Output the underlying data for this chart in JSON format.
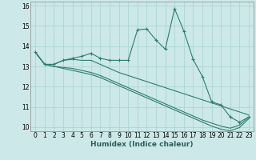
{
  "xlabel": "Humidex (Indice chaleur)",
  "ylabel": "",
  "background_color": "#cce8e8",
  "grid_color": "#aed4d4",
  "line_color": "#2e7d6e",
  "xlim": [
    -0.5,
    23.5
  ],
  "ylim": [
    9.8,
    16.2
  ],
  "xticks": [
    0,
    1,
    2,
    3,
    4,
    5,
    6,
    7,
    8,
    9,
    10,
    11,
    12,
    13,
    14,
    15,
    16,
    17,
    18,
    19,
    20,
    21,
    22,
    23
  ],
  "yticks": [
    10,
    11,
    12,
    13,
    14,
    15,
    16
  ],
  "series": [
    [
      13.7,
      13.1,
      13.1,
      13.3,
      13.4,
      13.5,
      13.65,
      13.4,
      13.3,
      13.3,
      13.3,
      14.8,
      14.85,
      14.3,
      13.85,
      15.85,
      14.75,
      13.35,
      12.5,
      11.25,
      11.1,
      10.5,
      10.25,
      10.5
    ],
    [
      13.7,
      13.1,
      13.1,
      13.3,
      13.35,
      13.3,
      13.3,
      13.1,
      12.9,
      12.7,
      12.55,
      12.4,
      12.25,
      12.1,
      11.95,
      11.8,
      11.65,
      11.5,
      11.35,
      11.2,
      11.05,
      10.9,
      10.75,
      10.6
    ],
    [
      13.7,
      13.1,
      13.0,
      12.95,
      12.9,
      12.8,
      12.7,
      12.55,
      12.35,
      12.15,
      11.95,
      11.75,
      11.55,
      11.35,
      11.15,
      10.95,
      10.75,
      10.55,
      10.35,
      10.2,
      10.05,
      9.95,
      10.1,
      10.5
    ],
    [
      13.7,
      13.1,
      13.0,
      12.9,
      12.8,
      12.7,
      12.6,
      12.45,
      12.25,
      12.05,
      11.85,
      11.65,
      11.45,
      11.25,
      11.05,
      10.85,
      10.65,
      10.45,
      10.25,
      10.05,
      9.9,
      9.82,
      9.98,
      10.42
    ]
  ]
}
